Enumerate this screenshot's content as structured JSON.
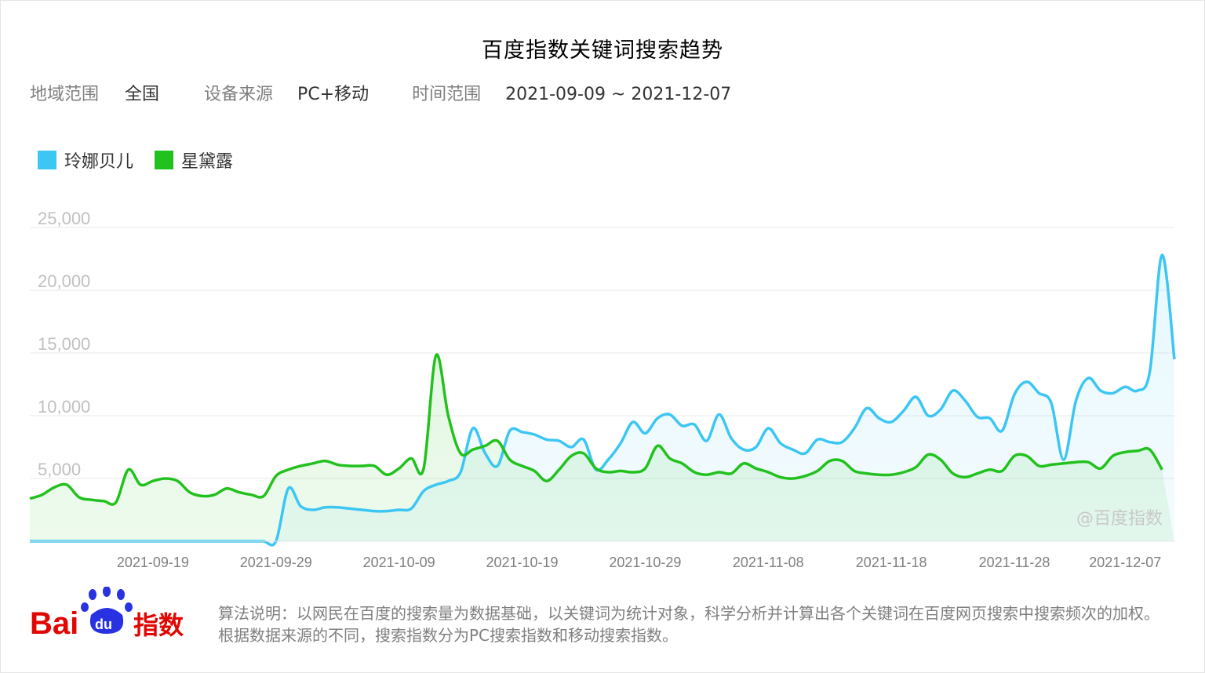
{
  "title": "百度指数关键词搜索趋势",
  "meta": {
    "region_label": "地域范围",
    "region_value": "全国",
    "device_label": "设备来源",
    "device_value": "PC+移动",
    "time_label": "时间范围",
    "time_value": "2021-09-09 ~ 2021-12-07"
  },
  "watermark": "@百度指数",
  "footer": {
    "logo_text": "Bai du 指数",
    "description": "算法说明：以网民在百度的搜索量为数据基础，以关键词为统计对象，科学分析并计算出各个关键词在百度网页搜索中搜索频次的加权。根据数据来源的不同，搜索指数分为PC搜索指数和移动搜索指数。"
  },
  "colors": {
    "series1": "#3cc6f4",
    "series2": "#22c11e",
    "grid": "#e9e9e9",
    "tick": "#c0c0c0",
    "xtick": "#7f7f7f"
  },
  "chart_data": {
    "type": "area",
    "start_date": "2021-09-09",
    "ylim": [
      0,
      25000
    ],
    "yticks": [
      "25,000",
      "20,000",
      "15,000",
      "10,000",
      "5,000"
    ],
    "ytick_values": [
      25000,
      20000,
      15000,
      10000,
      5000
    ],
    "xticks": [
      "2021-09-19",
      "2021-09-29",
      "2021-10-09",
      "2021-10-19",
      "2021-10-29",
      "2021-11-08",
      "2021-11-18",
      "2021-11-28",
      "2021-12-07"
    ],
    "grid": true,
    "legend_placement": "top-left",
    "series": [
      {
        "name": "玲娜贝儿",
        "values": [
          0,
          0,
          0,
          0,
          0,
          0,
          0,
          0,
          0,
          0,
          0,
          0,
          0,
          0,
          0,
          0,
          0,
          0,
          0,
          0,
          0,
          4200,
          2800,
          2500,
          2700,
          2700,
          2600,
          2500,
          2400,
          2400,
          2500,
          2600,
          4000,
          4500,
          4800,
          5500,
          9000,
          7000,
          6000,
          8800,
          8700,
          8500,
          8100,
          8000,
          7500,
          8100,
          5700,
          6500,
          7800,
          9500,
          8600,
          9800,
          10100,
          9200,
          9300,
          8000,
          10100,
          8200,
          7300,
          7500,
          9000,
          7800,
          7300,
          7000,
          8100,
          7900,
          7900,
          9000,
          10600,
          9800,
          9500,
          10400,
          11500,
          10000,
          10500,
          12000,
          11200,
          9900,
          9800,
          8800,
          11700,
          12700,
          11800,
          11000,
          6500,
          11200,
          13000,
          12000,
          11800,
          12300,
          12000,
          13500,
          22800,
          14500
        ]
      },
      {
        "name": "星黛露",
        "values": [
          3400,
          3700,
          4300,
          4500,
          3500,
          3300,
          3200,
          3100,
          5700,
          4500,
          4800,
          5000,
          4800,
          3900,
          3600,
          3700,
          4200,
          3900,
          3700,
          3600,
          5200,
          5700,
          6000,
          6200,
          6400,
          6100,
          6000,
          6000,
          6000,
          5300,
          5800,
          6600,
          5800,
          14800,
          10000,
          7000,
          7300,
          7600,
          8000,
          6500,
          6000,
          5600,
          4800,
          5700,
          6800,
          7000,
          5800,
          5500,
          5600,
          5500,
          5800,
          7600,
          6600,
          6200,
          5500,
          5300,
          5500,
          5400,
          6200,
          5800,
          5500,
          5100,
          5000,
          5200,
          5600,
          6400,
          6400,
          5600,
          5400,
          5300,
          5300,
          5500,
          5900,
          6900,
          6500,
          5400,
          5100,
          5400,
          5700,
          5600,
          6800,
          6800,
          6000,
          6100,
          6200,
          6300,
          6300,
          5800,
          6800,
          7100,
          7200,
          7300,
          5700
        ]
      }
    ]
  }
}
